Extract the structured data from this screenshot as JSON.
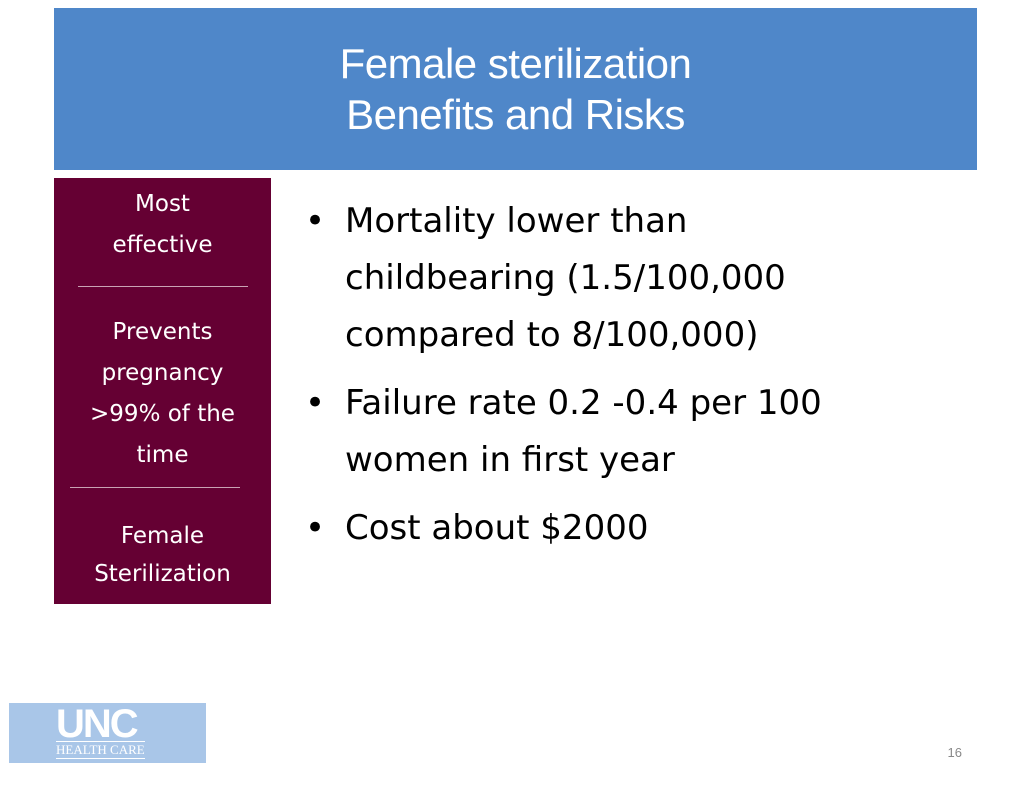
{
  "slide": {
    "title_lines": [
      "Female sterilization",
      "Benefits and Risks"
    ],
    "side_panel": {
      "top_label": [
        "Most",
        "effective"
      ],
      "middle_label": [
        "Prevents",
        "pregnancy",
        ">99% of the",
        "time"
      ],
      "bottom_label": [
        "Female",
        "Sterilization"
      ]
    },
    "bullets": [
      {
        "lines": [
          "Mortality lower than",
          "childbearing (1.5/100,000",
          "compared to 8/100,000)"
        ]
      },
      {
        "lines": [
          "Failure rate 0.2 -0.4 per 100",
          "women in first year"
        ]
      },
      {
        "lines": [
          "Cost about $2000"
        ]
      }
    ],
    "bullet_glyph": "•",
    "page_number": "16"
  },
  "logo": {
    "main_text": "UNC",
    "sub_text": "HEALTH CARE"
  },
  "colors": {
    "title_bar": "#4f87c9",
    "side_panel": "#650033",
    "logo_background": "#a9c6e8"
  }
}
